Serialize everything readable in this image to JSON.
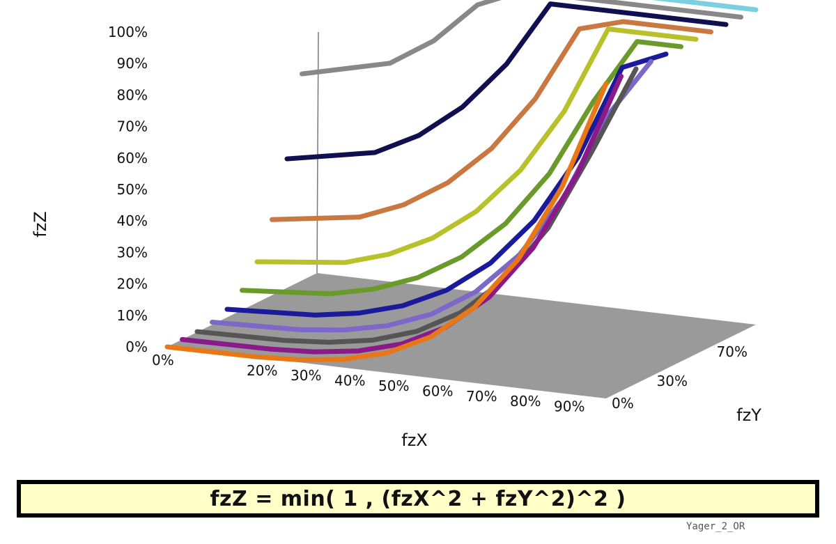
{
  "chart_data": {
    "type": "surface",
    "title": "",
    "xlabel": "fzX",
    "ylabel": "fzY",
    "zlabel": "fzZ",
    "x_tick_labels": [
      "0%",
      "20%",
      "30%",
      "40%",
      "50%",
      "60%",
      "70%",
      "80%",
      "90%"
    ],
    "y_tick_labels": [
      "0%",
      "30%",
      "70%"
    ],
    "z_tick_labels": [
      "0%",
      "10%",
      "20%",
      "30%",
      "40%",
      "50%",
      "60%",
      "70%",
      "80%",
      "90%",
      "100%"
    ],
    "zlim": [
      0,
      1
    ],
    "x": [
      0,
      0.2,
      0.3,
      0.4,
      0.5,
      0.6,
      0.7,
      0.8,
      0.9,
      1.0
    ],
    "series": [
      {
        "fzY": 0.0,
        "color": "#e87817",
        "values": [
          0,
          0.0016,
          0.0081,
          0.0256,
          0.0625,
          0.1296,
          0.2401,
          0.4096,
          0.6561,
          1
        ]
      },
      {
        "fzY": 0.1,
        "color": "#8a1a8a",
        "values": [
          0.0001,
          0.0025,
          0.01,
          0.0289,
          0.0676,
          0.1369,
          0.25,
          0.4225,
          0.6724,
          1
        ]
      },
      {
        "fzY": 0.2,
        "color": "#555555",
        "values": [
          0.0016,
          0.0064,
          0.0169,
          0.04,
          0.0841,
          0.16,
          0.2809,
          0.4624,
          0.7225,
          1
        ]
      },
      {
        "fzY": 0.3,
        "color": "#7b68c8",
        "values": [
          0.0081,
          0.0169,
          0.0324,
          0.0625,
          0.1156,
          0.2025,
          0.3364,
          0.5329,
          0.81,
          1
        ]
      },
      {
        "fzY": 0.4,
        "color": "#1a1a9a",
        "values": [
          0.0256,
          0.04,
          0.0625,
          0.1024,
          0.1681,
          0.2704,
          0.4225,
          0.64,
          0.9409,
          1
        ]
      },
      {
        "fzY": 0.5,
        "color": "#6a9a2a",
        "values": [
          0.0625,
          0.0841,
          0.1156,
          0.1681,
          0.25,
          0.3721,
          0.5476,
          0.7921,
          1,
          1
        ]
      },
      {
        "fzY": 0.6,
        "color": "#b8c02a",
        "values": [
          0.1296,
          0.16,
          0.2025,
          0.2704,
          0.3721,
          0.5184,
          0.7225,
          1,
          1,
          1
        ]
      },
      {
        "fzY": 0.7,
        "color": "#c87840",
        "values": [
          0.2401,
          0.2809,
          0.3364,
          0.4225,
          0.5476,
          0.7225,
          0.9604,
          1,
          1,
          1
        ]
      },
      {
        "fzY": 0.8,
        "color": "#101050",
        "values": [
          0.4096,
          0.4624,
          0.5329,
          0.64,
          0.7921,
          1,
          1,
          1,
          1,
          1
        ]
      },
      {
        "fzY": 0.9,
        "color": "#888888",
        "values": [
          0.6561,
          0.7225,
          0.81,
          0.9409,
          1,
          1,
          1,
          1,
          1,
          1
        ]
      },
      {
        "fzY": 1.0,
        "color": "#7ad0e0",
        "values": [
          1,
          1,
          1,
          1,
          1,
          1,
          1,
          1,
          1,
          1
        ]
      }
    ],
    "floor_color": "#9a9a9a",
    "grid": false,
    "legend": "none"
  },
  "formula": {
    "text": "fzZ = min( 1 , (fzX^2 + fzY^2)^2 )",
    "background": "#ffffc8",
    "border": "#000000"
  },
  "source_label": "Yager_2_OR"
}
